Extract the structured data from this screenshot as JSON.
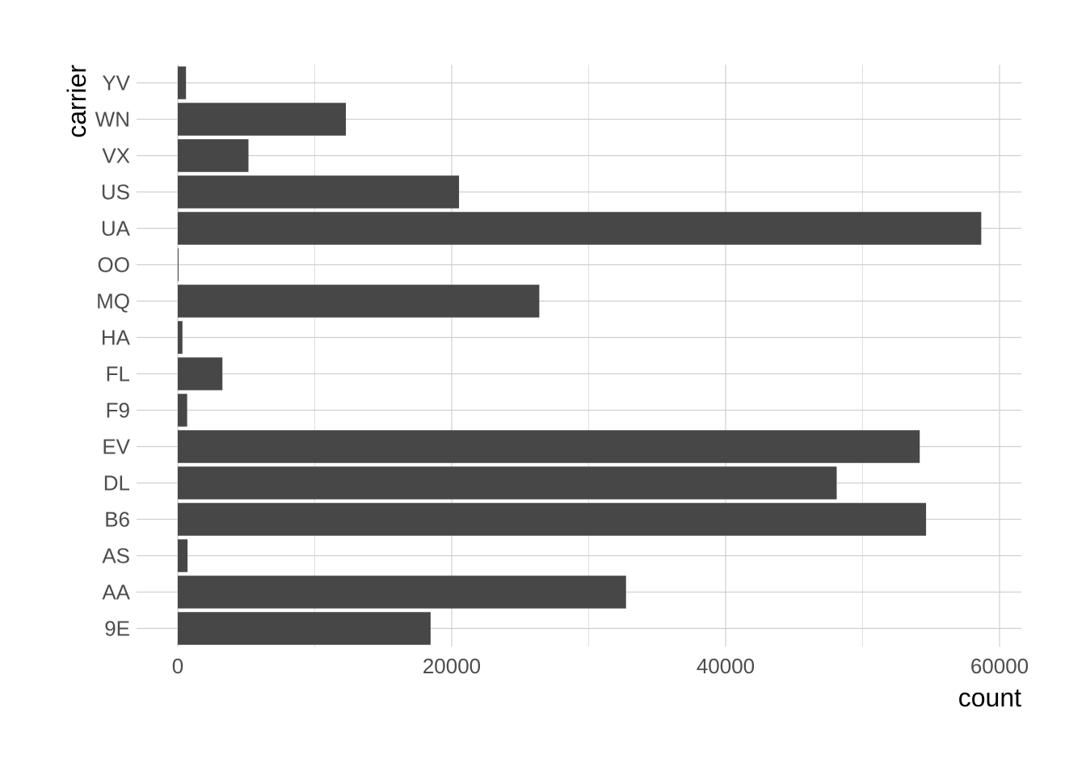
{
  "chart_data": {
    "type": "bar",
    "orientation": "horizontal",
    "categories": [
      "9E",
      "AA",
      "AS",
      "B6",
      "DL",
      "EV",
      "F9",
      "FL",
      "HA",
      "MQ",
      "OO",
      "UA",
      "US",
      "VX",
      "WN",
      "YV"
    ],
    "values": [
      18460,
      32729,
      714,
      54635,
      48110,
      54173,
      685,
      3260,
      342,
      26397,
      32,
      58665,
      20536,
      5162,
      12275,
      601
    ],
    "xlabel": "count",
    "ylabel": "carrier",
    "xlim": [
      -2950,
      61650
    ],
    "xticks": [
      0,
      20000,
      40000,
      60000
    ],
    "xtick_labels": [
      "0",
      "20000",
      "40000",
      "60000"
    ],
    "grid": true,
    "bar_color": "#474747",
    "grid_major_color": "#d0d0d0",
    "grid_minor_color": "#e0e0e0",
    "background": "#ffffff"
  }
}
